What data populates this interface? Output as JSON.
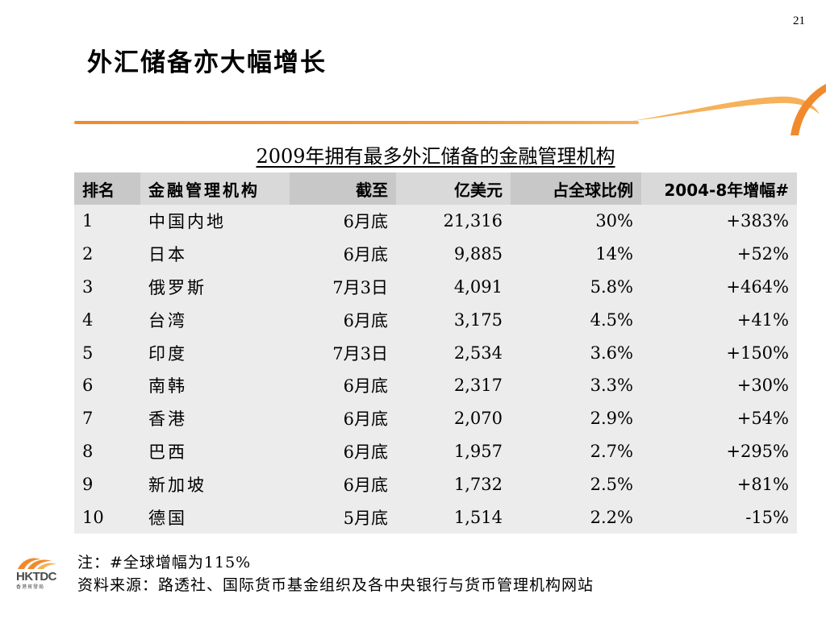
{
  "slide": {
    "page_number": "21",
    "title": "外汇储备亦大幅增长"
  },
  "table": {
    "caption": "2009年拥有最多外汇储备的金融管理机构",
    "headers": [
      "排名",
      "金融管理机构",
      "截至",
      "亿美元",
      "占全球比例",
      "2004-8年增幅#"
    ],
    "rows": [
      [
        "1",
        "中国内地",
        "6月底",
        "21,316",
        "30%",
        "+383%"
      ],
      [
        "2",
        "日本",
        "6月底",
        "9,885",
        "14%",
        "+52%"
      ],
      [
        "3",
        "俄罗斯",
        "7月3日",
        "4,091",
        "5.8%",
        "+464%"
      ],
      [
        "4",
        "台湾",
        "6月底",
        "3,175",
        "4.5%",
        "+41%"
      ],
      [
        "5",
        "印度",
        "7月3日",
        "2,534",
        "3.6%",
        "+150%"
      ],
      [
        "6",
        "南韩",
        "6月底",
        "2,317",
        "3.3%",
        "+30%"
      ],
      [
        "7",
        "香港",
        "6月底",
        "2,070",
        "2.9%",
        "+54%"
      ],
      [
        "8",
        "巴西",
        "6月底",
        "1,957",
        "2.7%",
        "+295%"
      ],
      [
        "9",
        "新加坡",
        "6月底",
        "1,732",
        "2.5%",
        "+81%"
      ],
      [
        "10",
        "德国",
        "5月底",
        "1,514",
        "2.2%",
        "-15%"
      ]
    ]
  },
  "notes": {
    "footnote": "注：#全球增幅为115%",
    "source": "资料来源：路透社、国际货币基金组织及各中央银行与货币管理机构网站"
  },
  "logo": {
    "text": "HKTDC",
    "subtext": "香港貿發局",
    "icon": "hktdc-logo-icon"
  },
  "colors": {
    "accent_orange": "#f08a2c",
    "header_gray": "#c8c8c8",
    "row_gray": "#ececec"
  }
}
